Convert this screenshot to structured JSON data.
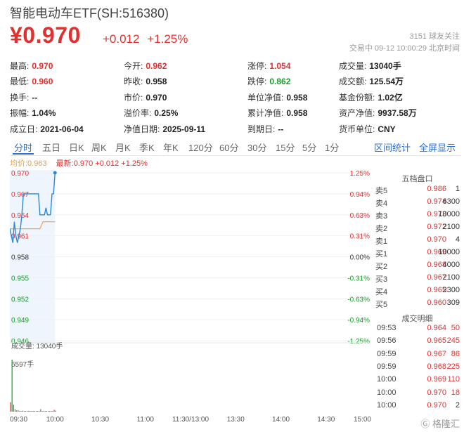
{
  "header": {
    "title": "智能电动车ETF(SH:516380)",
    "price": "¥0.970",
    "change": "+0.012",
    "change_pct": "+1.25%",
    "followers": "3151  球友关注",
    "trade_time": "交易中  09-12 10:00:29 北京时间"
  },
  "stats": [
    [
      {
        "label": "最高:",
        "value": "0.970",
        "color": "red"
      },
      {
        "label": "今开:",
        "value": "0.962",
        "color": "red"
      },
      {
        "label": "涨停:",
        "value": "1.054",
        "color": "red"
      },
      {
        "label": "成交量:",
        "value": "13040手",
        "color": ""
      }
    ],
    [
      {
        "label": "最低:",
        "value": "0.960",
        "color": "red"
      },
      {
        "label": "昨收:",
        "value": "0.958",
        "color": ""
      },
      {
        "label": "跌停:",
        "value": "0.862",
        "color": "green"
      },
      {
        "label": "成交额:",
        "value": "125.54万",
        "color": ""
      }
    ],
    [
      {
        "label": "换手:",
        "value": "--",
        "color": ""
      },
      {
        "label": "市价:",
        "value": "0.970",
        "color": ""
      },
      {
        "label": "单位净值:",
        "value": "0.958",
        "color": ""
      },
      {
        "label": "基金份额:",
        "value": "1.02亿",
        "color": ""
      }
    ],
    [
      {
        "label": "振幅:",
        "value": "1.04%",
        "color": ""
      },
      {
        "label": "溢价率:",
        "value": "0.25%",
        "color": ""
      },
      {
        "label": "累计净值:",
        "value": "0.958",
        "color": ""
      },
      {
        "label": "资产净值:",
        "value": "9937.58万",
        "color": ""
      }
    ],
    [
      {
        "label": "成立日:",
        "value": "2021-06-04",
        "color": ""
      },
      {
        "label": "净值日期:",
        "value": "2025-09-11",
        "color": ""
      },
      {
        "label": "到期日:",
        "value": "--",
        "color": ""
      },
      {
        "label": "货币单位:",
        "value": "CNY",
        "color": ""
      }
    ]
  ],
  "tabs": [
    "分时",
    "五日",
    "日K",
    "周K",
    "月K",
    "季K",
    "年K",
    "120分",
    "60分",
    "30分",
    "15分",
    "5分",
    "1分"
  ],
  "active_tab": "分时",
  "tab_links": [
    "区间统计",
    "全屏显示"
  ],
  "legend": {
    "avg": "均价:0.963",
    "latest": "最新:0.970 +0.012 +1.25%"
  },
  "volume_label": "成交量: 13040手",
  "volume_max_label": "6597手",
  "order_book_title": "五档盘口",
  "order_book": [
    {
      "label": "卖5",
      "price": "0.986",
      "volume": "1"
    },
    {
      "label": "卖4",
      "price": "0.974",
      "volume": "6300"
    },
    {
      "label": "卖3",
      "price": "0.973",
      "volume": "10000"
    },
    {
      "label": "卖2",
      "price": "0.972",
      "volume": "2100"
    },
    {
      "label": "卖1",
      "price": "0.970",
      "volume": "4"
    },
    {
      "label": "买1",
      "price": "0.969",
      "volume": "10000"
    },
    {
      "label": "买2",
      "price": "0.968",
      "volume": "4000"
    },
    {
      "label": "买3",
      "price": "0.967",
      "volume": "2100"
    },
    {
      "label": "买4",
      "price": "0.965",
      "volume": "2300"
    },
    {
      "label": "买5",
      "price": "0.960",
      "volume": "309"
    }
  ],
  "trades_title": "成交明细",
  "trades": [
    {
      "time": "09:53",
      "price": "0.964",
      "volume": "50",
      "dir": "red"
    },
    {
      "time": "09:56",
      "price": "0.965",
      "volume": "245",
      "dir": "red"
    },
    {
      "time": "09:59",
      "price": "0.967",
      "volume": "86",
      "dir": "red"
    },
    {
      "time": "09:59",
      "price": "0.968",
      "volume": "225",
      "dir": "red"
    },
    {
      "time": "10:00",
      "price": "0.969",
      "volume": "110",
      "dir": "red"
    },
    {
      "time": "10:00",
      "price": "0.970",
      "volume": "18",
      "dir": "red"
    },
    {
      "time": "10:00",
      "price": "0.970",
      "volume": "2",
      "dir": "dark"
    }
  ],
  "colors": {
    "up": "#e03030",
    "down": "#1a9a2a",
    "price_line": "#2a8ad6",
    "avg_line": "#f0a050",
    "accent": "#2a6fd6"
  },
  "chart_data": {
    "type": "line",
    "y_ticks_left": [
      "0.970",
      "0.967",
      "0.964",
      "0.961",
      "0.958",
      "0.955",
      "0.952",
      "0.949",
      "0.946"
    ],
    "y_ticks_right": [
      "1.25%",
      "0.94%",
      "0.63%",
      "0.31%",
      "0.00%",
      "-0.31%",
      "-0.63%",
      "-0.94%",
      "-1.25%"
    ],
    "y_tick_values": [
      0.97,
      0.967,
      0.964,
      0.961,
      0.958,
      0.955,
      0.952,
      0.949,
      0.946
    ],
    "x_ticks": [
      "09:30",
      "10:00",
      "10:30",
      "11:00",
      "11:30/13:00",
      "13:30",
      "14:00",
      "14:30",
      "15:00"
    ],
    "ylim": [
      0.946,
      0.97
    ],
    "minutes_total": 240,
    "series": [
      {
        "name": "最新",
        "x_minutes": [
          0,
          1,
          2,
          3,
          4,
          5,
          6,
          7,
          8,
          9,
          10,
          11,
          12,
          13,
          14,
          15,
          16,
          17,
          18,
          19,
          20,
          21,
          22,
          23,
          24,
          25,
          26,
          27,
          28,
          29,
          30
        ],
        "values": [
          0.962,
          0.961,
          0.96,
          0.963,
          0.961,
          0.96,
          0.961,
          0.962,
          0.964,
          0.967,
          0.967,
          0.967,
          0.967,
          0.967,
          0.967,
          0.967,
          0.967,
          0.967,
          0.967,
          0.967,
          0.964,
          0.964,
          0.964,
          0.964,
          0.965,
          0.964,
          0.964,
          0.964,
          0.967,
          0.967,
          0.97
        ]
      },
      {
        "name": "均价",
        "x_minutes": [
          0,
          2,
          4,
          6,
          8,
          10,
          12,
          14,
          16,
          18,
          20,
          22,
          24,
          26,
          28,
          30
        ],
        "values": [
          0.962,
          0.962,
          0.962,
          0.962,
          0.962,
          0.962,
          0.962,
          0.962,
          0.962,
          0.962,
          0.962,
          0.963,
          0.963,
          0.963,
          0.963,
          0.963
        ]
      }
    ],
    "volume": {
      "x_minutes": [
        0,
        1,
        2,
        3,
        4,
        5,
        6,
        7,
        8,
        9,
        10,
        11,
        12,
        13,
        14,
        15,
        16,
        17,
        18,
        19,
        20,
        21,
        22,
        23,
        24,
        25,
        26,
        27,
        28,
        29,
        30
      ],
      "values": [
        1200,
        6597,
        900,
        300,
        150,
        200,
        100,
        80,
        120,
        90,
        60,
        50,
        40,
        30,
        20,
        30,
        20,
        15,
        20,
        25,
        300,
        40,
        30,
        20,
        50,
        30,
        25,
        20,
        86,
        225,
        130
      ],
      "max": 6597
    }
  }
}
